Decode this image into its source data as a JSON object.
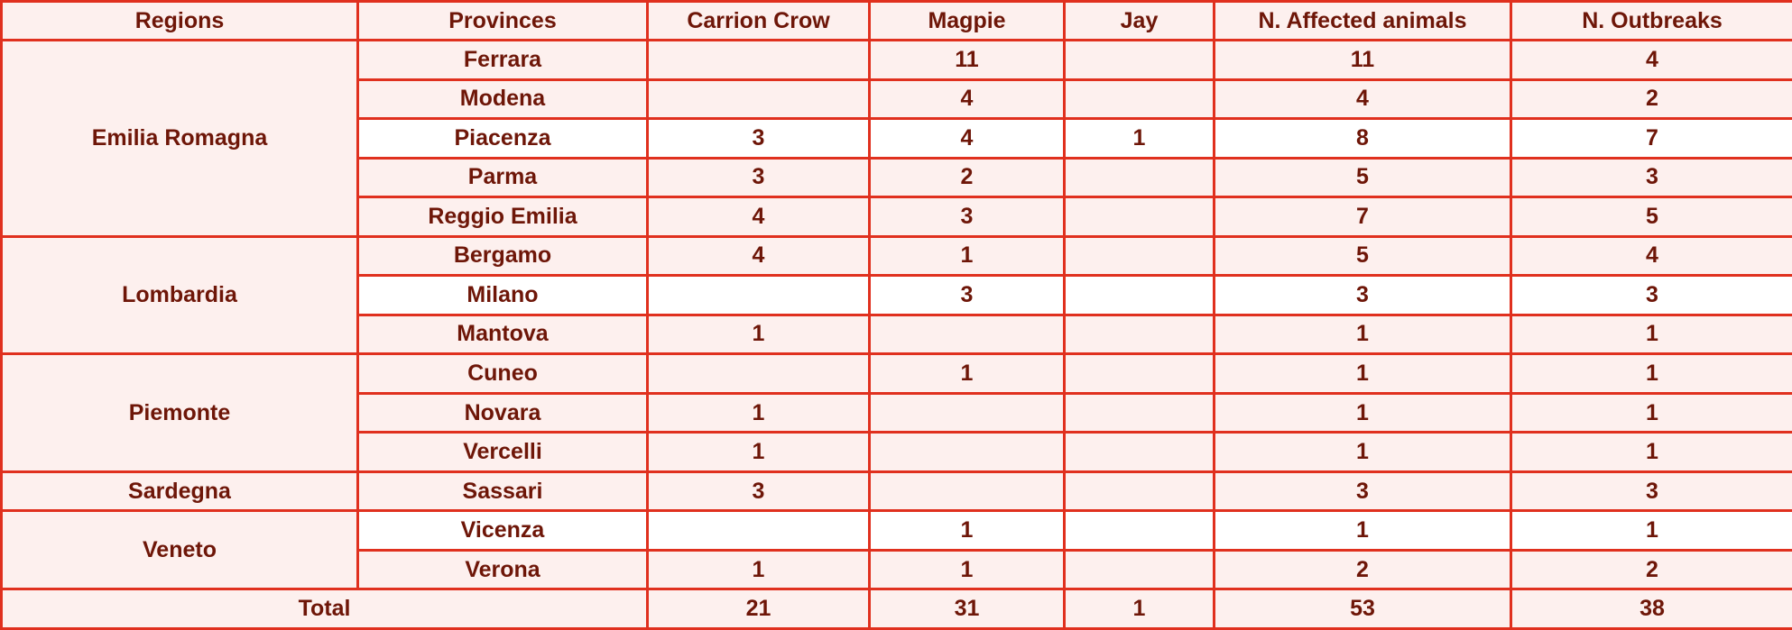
{
  "table": {
    "headers": [
      "Regions",
      "Provinces",
      "Carrion Crow",
      "Magpie",
      "Jay",
      "N. Affected animals",
      "N. Outbreaks"
    ],
    "regions": [
      {
        "name": "Emilia Romagna",
        "rows": [
          {
            "province": "Ferrara",
            "carrion_crow": "",
            "magpie": "11",
            "jay": "",
            "affected": "11",
            "outbreaks": "4"
          },
          {
            "province": "Modena",
            "carrion_crow": "",
            "magpie": "4",
            "jay": "",
            "affected": "4",
            "outbreaks": "2"
          },
          {
            "province": "Piacenza",
            "carrion_crow": "3",
            "magpie": "4",
            "jay": "1",
            "affected": "8",
            "outbreaks": "7"
          },
          {
            "province": "Parma",
            "carrion_crow": "3",
            "magpie": "2",
            "jay": "",
            "affected": "5",
            "outbreaks": "3"
          },
          {
            "province": "Reggio Emilia",
            "carrion_crow": "4",
            "magpie": "3",
            "jay": "",
            "affected": "7",
            "outbreaks": "5"
          }
        ]
      },
      {
        "name": "Lombardia",
        "rows": [
          {
            "province": "Bergamo",
            "carrion_crow": "4",
            "magpie": "1",
            "jay": "",
            "affected": "5",
            "outbreaks": "4"
          },
          {
            "province": "Milano",
            "carrion_crow": "",
            "magpie": "3",
            "jay": "",
            "affected": "3",
            "outbreaks": "3"
          },
          {
            "province": "Mantova",
            "carrion_crow": "1",
            "magpie": "",
            "jay": "",
            "affected": "1",
            "outbreaks": "1"
          }
        ]
      },
      {
        "name": "Piemonte",
        "rows": [
          {
            "province": "Cuneo",
            "carrion_crow": "",
            "magpie": "1",
            "jay": "",
            "affected": "1",
            "outbreaks": "1"
          },
          {
            "province": "Novara",
            "carrion_crow": "1",
            "magpie": "",
            "jay": "",
            "affected": "1",
            "outbreaks": "1"
          },
          {
            "province": "Vercelli",
            "carrion_crow": "1",
            "magpie": "",
            "jay": "",
            "affected": "1",
            "outbreaks": "1"
          }
        ]
      },
      {
        "name": "Sardegna",
        "rows": [
          {
            "province": "Sassari",
            "carrion_crow": "3",
            "magpie": "",
            "jay": "",
            "affected": "3",
            "outbreaks": "3"
          }
        ]
      },
      {
        "name": "Veneto",
        "rows": [
          {
            "province": "Vicenza",
            "carrion_crow": "",
            "magpie": "1",
            "jay": "",
            "affected": "1",
            "outbreaks": "1"
          },
          {
            "province": "Verona",
            "carrion_crow": "1",
            "magpie": "1",
            "jay": "",
            "affected": "2",
            "outbreaks": "2"
          }
        ]
      }
    ],
    "total": {
      "label": "Total",
      "carrion_crow": "21",
      "magpie": "31",
      "jay": "1",
      "affected": "53",
      "outbreaks": "38"
    }
  },
  "colors": {
    "border": "#e0301e",
    "text": "#6e1608",
    "row_tint": "#fdf0ee",
    "row_white": "#ffffff"
  }
}
